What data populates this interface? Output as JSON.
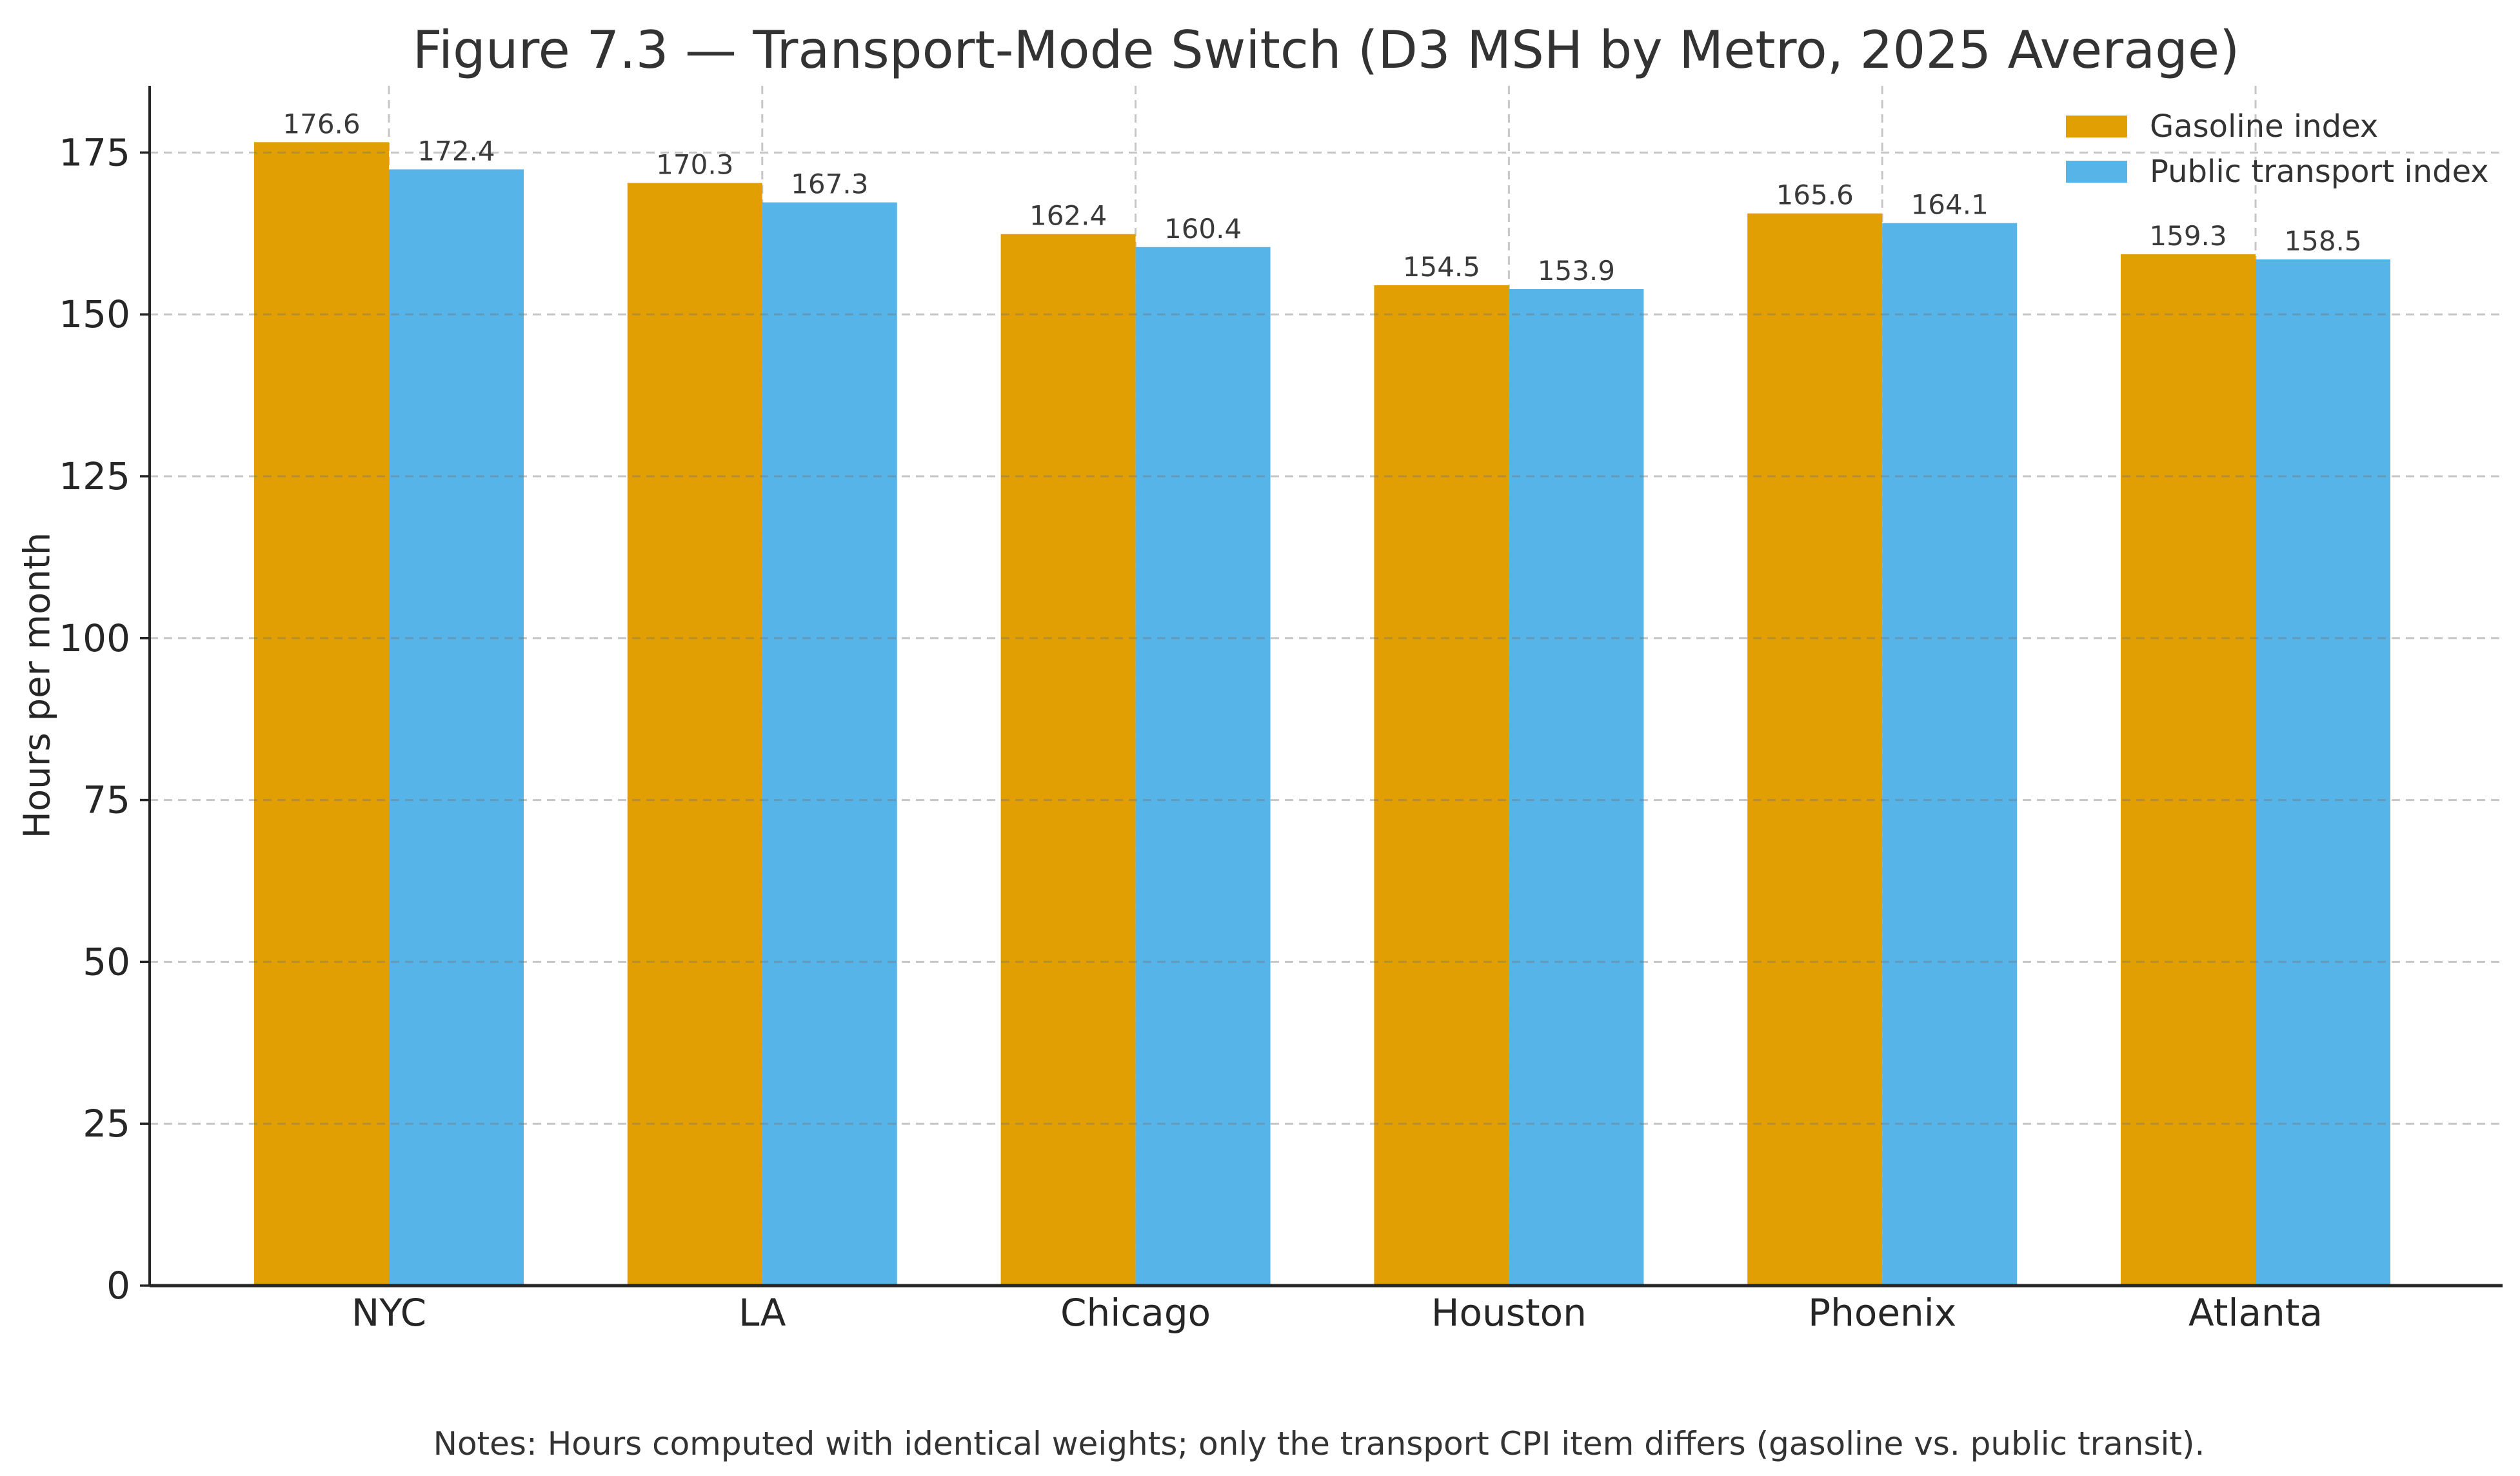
{
  "chart_data": {
    "type": "bar",
    "title": "Figure 7.3 — Transport-Mode Switch (D3 MSH by Metro, 2025 Average)",
    "ylabel": "Hours per month",
    "xlabel": "",
    "categories": [
      "NYC",
      "LA",
      "Chicago",
      "Houston",
      "Phoenix",
      "Atlanta"
    ],
    "series": [
      {
        "name": "Gasoline index",
        "color": "#E29F03",
        "values": [
          176.6,
          170.3,
          162.4,
          154.5,
          165.6,
          159.3
        ]
      },
      {
        "name": "Public transport index",
        "color": "#56B4E9",
        "values": [
          172.4,
          167.3,
          160.4,
          153.9,
          164.1,
          158.5
        ]
      }
    ],
    "value_label_format": "1-decimal",
    "yticks": [
      0,
      25,
      50,
      75,
      100,
      125,
      150,
      175
    ],
    "ylim": [
      0,
      185.3
    ],
    "grid": "dashed",
    "legend_position": "upper right",
    "note": "Notes: Hours computed with identical weights; only the transport CPI item differs (gasoline vs. public transit)."
  },
  "colors": {
    "axis": "#262626",
    "grid": "#787878",
    "tick_text": "#262626",
    "value_label_text": "#3a3a3a",
    "background": "#ffffff"
  }
}
